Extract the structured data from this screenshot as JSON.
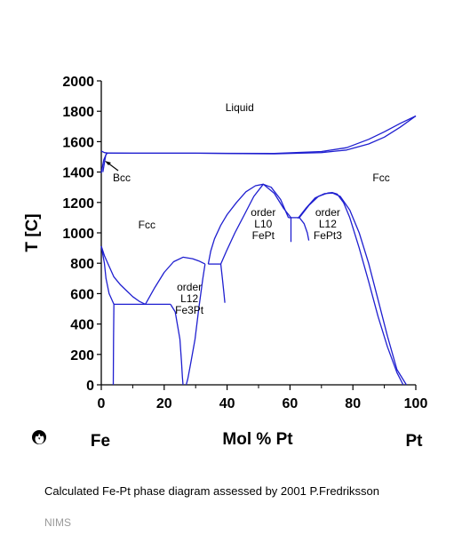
{
  "chart_data": {
    "type": "line",
    "title": "",
    "xlabel": "Mol % Pt",
    "ylabel": "T [C]",
    "xlim": [
      0,
      100
    ],
    "ylim": [
      0,
      2000
    ],
    "x_ticks": [
      "0",
      "20",
      "40",
      "60",
      "80",
      "100"
    ],
    "y_ticks": [
      "0",
      "200",
      "400",
      "600",
      "800",
      "1000",
      "1200",
      "1400",
      "1600",
      "1800",
      "2000"
    ],
    "end_labels": {
      "left": "Fe",
      "right": "Pt"
    },
    "line_color": "#1f1fd0",
    "grid": false,
    "region_labels": [
      {
        "lines": [
          "Liquid"
        ],
        "x": 44,
        "y": 1800
      },
      {
        "lines": [
          "Bcc"
        ],
        "x": 6.5,
        "y": 1340
      },
      {
        "lines": [
          "Fcc"
        ],
        "x": 14.5,
        "y": 1030
      },
      {
        "lines": [
          "Fcc"
        ],
        "x": 89,
        "y": 1340
      },
      {
        "lines": [
          "order",
          "L12",
          "Fe3Pt"
        ],
        "x": 28,
        "y": 620
      },
      {
        "lines": [
          "order",
          "L10",
          "FePt"
        ],
        "x": 51.5,
        "y": 1110
      },
      {
        "lines": [
          "order",
          "L12",
          "FePt3"
        ],
        "x": 72,
        "y": 1110
      }
    ],
    "series": [
      {
        "x": [
          0,
          1,
          2,
          10,
          30,
          55,
          70,
          78,
          85,
          90,
          95,
          100
        ],
        "y": [
          1538,
          1528,
          1525,
          1524,
          1524,
          1520,
          1528,
          1545,
          1585,
          1630,
          1695,
          1769
        ]
      },
      {
        "x": [
          2,
          10,
          30,
          55,
          70,
          78,
          85,
          90,
          95,
          100
        ],
        "y": [
          1525,
          1524,
          1524,
          1522,
          1535,
          1560,
          1615,
          1665,
          1720,
          1769
        ]
      },
      {
        "x": [
          0,
          0.8,
          1.6,
          2.2
        ],
        "y": [
          1394,
          1480,
          1520,
          1525
        ]
      },
      {
        "x": [
          0.5,
          1.0,
          1.4,
          1.8
        ],
        "y": [
          1400,
          1460,
          1510,
          1525
        ]
      },
      {
        "x": [
          0,
          1,
          2.5,
          4,
          6,
          8,
          10,
          12,
          14
        ],
        "y": [
          912,
          850,
          780,
          710,
          660,
          620,
          580,
          550,
          530
        ]
      },
      {
        "x": [
          0,
          1,
          1.5,
          2.5,
          4
        ],
        "y": [
          912,
          800,
          700,
          600,
          530
        ]
      },
      {
        "x": [
          4,
          22
        ],
        "y": [
          530,
          530
        ]
      },
      {
        "x": [
          4,
          3.9,
          3.8
        ],
        "y": [
          530,
          300,
          0
        ]
      },
      {
        "x": [
          14,
          17,
          20,
          23,
          26,
          29,
          31,
          33
        ],
        "y": [
          530,
          640,
          740,
          810,
          840,
          830,
          815,
          795
        ]
      },
      {
        "x": [
          22,
          23.5,
          25,
          25.5,
          25.8,
          26
        ],
        "y": [
          530,
          480,
          300,
          150,
          50,
          0
        ]
      },
      {
        "x": [
          33,
          32.3,
          31,
          29.8,
          28.5,
          27.5,
          27
        ],
        "y": [
          795,
          700,
          500,
          300,
          150,
          40,
          0
        ]
      },
      {
        "x": [
          34,
          38
        ],
        "y": [
          795,
          795
        ]
      },
      {
        "x": [
          38,
          38.5,
          39,
          39.3
        ],
        "y": [
          795,
          700,
          600,
          540
        ]
      },
      {
        "x": [
          34,
          34.8,
          36,
          38,
          40,
          43,
          46,
          49,
          51.5,
          54,
          57,
          59.5
        ],
        "y": [
          795,
          880,
          960,
          1050,
          1120,
          1200,
          1270,
          1310,
          1320,
          1300,
          1220,
          1100
        ]
      },
      {
        "x": [
          38,
          39.8,
          42.5,
          45.5,
          48.5,
          51.5,
          55,
          58,
          60.3,
          60.3
        ],
        "y": [
          795,
          880,
          1000,
          1120,
          1240,
          1320,
          1260,
          1160,
          1100,
          940
        ]
      },
      {
        "x": [
          59.5,
          63
        ],
        "y": [
          1100,
          1100
        ]
      },
      {
        "x": [
          63,
          64.5,
          65.5,
          66
        ],
        "y": [
          1100,
          1060,
          1000,
          950
        ]
      },
      {
        "x": [
          62.5,
          65,
          68,
          71,
          73.5,
          76,
          79,
          82,
          85,
          88,
          91,
          94,
          97
        ],
        "y": [
          1095,
          1160,
          1230,
          1258,
          1262,
          1240,
          1150,
          1000,
          800,
          560,
          320,
          100,
          0
        ]
      },
      {
        "x": [
          63,
          66,
          69,
          72,
          73.5,
          75,
          77,
          79,
          82,
          85,
          88,
          91,
          94,
          96
        ],
        "y": [
          1100,
          1180,
          1240,
          1262,
          1265,
          1255,
          1200,
          1100,
          900,
          680,
          450,
          250,
          80,
          0
        ]
      }
    ]
  },
  "caption": "Calculated Fe-Pt phase diagram assessed by 2001 P.Fredriksson",
  "credit": "NIMS",
  "logo_icon": "penguin-icon"
}
